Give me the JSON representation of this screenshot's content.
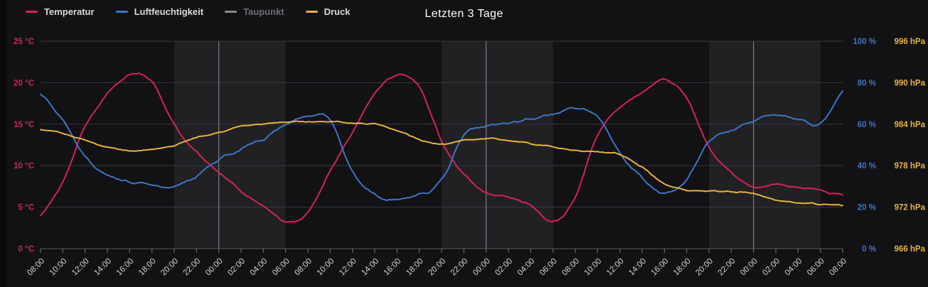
{
  "panel_title": "Letzten 3 Tage",
  "colors": {
    "panel_bg": "#121214",
    "edge_bg": "#0a0a0b",
    "night_band": "#212124",
    "grid_line": "#38383c",
    "midnight_line": "#8f8f94",
    "axis_line": "#56565a",
    "tick_mark": "#77777c",
    "x_label_text": "#cfd0d2",
    "title_text": "#ffffff",
    "legend_text": "#d8d9da",
    "legend_disabled_text": "#6e6e72",
    "temperature": "#d4215c",
    "humidity": "#3d74c4",
    "dewpoint": "#8a8a8a",
    "pressure": "#e3b33d"
  },
  "chart_data": {
    "type": "line",
    "title": "Letzten 3 Tage",
    "legend_position": "top-left",
    "grid": true,
    "categories": [
      "08:00",
      "10:00",
      "12:00",
      "14:00",
      "16:00",
      "18:00",
      "20:00",
      "22:00",
      "00:00",
      "02:00",
      "04:00",
      "06:00",
      "08:00",
      "10:00",
      "12:00",
      "14:00",
      "16:00",
      "18:00",
      "20:00",
      "22:00",
      "00:00",
      "02:00",
      "04:00",
      "06:00",
      "08:00",
      "10:00",
      "12:00",
      "14:00",
      "16:00",
      "18:00",
      "20:00",
      "22:00",
      "00:00",
      "02:00",
      "04:00",
      "06:00",
      "08:00"
    ],
    "tick_interval_hours": 2,
    "night_bands_hours": [
      [
        12,
        22
      ],
      [
        36,
        46
      ],
      [
        60,
        70
      ]
    ],
    "axes": {
      "temp": {
        "side": "left",
        "unit": "°C",
        "min": 0,
        "max": 25,
        "ticks": [
          0,
          5,
          10,
          15,
          20,
          25
        ],
        "color": "#d4215c"
      },
      "humidity": {
        "side": "right",
        "unit": "%",
        "min": 0,
        "max": 100,
        "ticks": [
          0,
          20,
          40,
          60,
          80,
          100
        ],
        "color": "#3d74c4"
      },
      "pressure": {
        "side": "right",
        "unit": "hPa",
        "min": 966,
        "max": 996,
        "ticks": [
          966,
          972,
          978,
          984,
          990,
          996
        ],
        "color": "#e3b33d"
      }
    },
    "series": [
      {
        "name": "Temperatur",
        "axis": "temp",
        "unit": "°C",
        "color": "#d4215c",
        "disabled": false,
        "values": [
          3.9,
          8.0,
          14.7,
          18.6,
          20.9,
          20.2,
          15.0,
          11.6,
          9.3,
          7.0,
          5.1,
          3.2,
          4.4,
          9.4,
          14.1,
          18.7,
          21.0,
          19.5,
          13.0,
          9.0,
          6.7,
          6.2,
          5.2,
          3.2,
          6.2,
          13.8,
          17.0,
          18.8,
          20.4,
          18.1,
          12.2,
          9.3,
          7.4,
          7.7,
          7.4,
          7.0,
          6.4
        ]
      },
      {
        "name": "Luftfeuchtigkeit",
        "axis": "humidity",
        "unit": "%",
        "color": "#3d74c4",
        "disabled": false,
        "values": [
          74,
          62,
          44,
          35,
          32,
          31,
          30,
          35,
          43,
          48,
          53,
          60,
          64,
          62,
          37,
          26,
          23.5,
          26,
          33,
          55,
          59,
          60.5,
          62.5,
          64.5,
          68,
          63.5,
          46,
          34,
          26.5,
          33.5,
          52,
          57,
          61.5,
          64.5,
          62.5,
          60.5,
          76
        ]
      },
      {
        "name": "Taupunkt",
        "axis": "temp",
        "unit": "°C",
        "color": "#8a8a8a",
        "disabled": true,
        "values": []
      },
      {
        "name": "Druck",
        "axis": "pressure",
        "unit": "hPa",
        "color": "#e3b33d",
        "disabled": false,
        "values": [
          983.1,
          982.7,
          981.6,
          980.7,
          980.1,
          980.4,
          980.9,
          982.1,
          982.8,
          983.7,
          984.0,
          984.3,
          984.4,
          984.4,
          984.2,
          984.0,
          983.1,
          981.8,
          981.1,
          981.6,
          981.9,
          981.7,
          981.2,
          980.7,
          980.2,
          979.9,
          979.6,
          977.8,
          975.4,
          974.5,
          974.4,
          974.2,
          973.9,
          973.0,
          972.7,
          972.4,
          972.3
        ]
      }
    ]
  }
}
